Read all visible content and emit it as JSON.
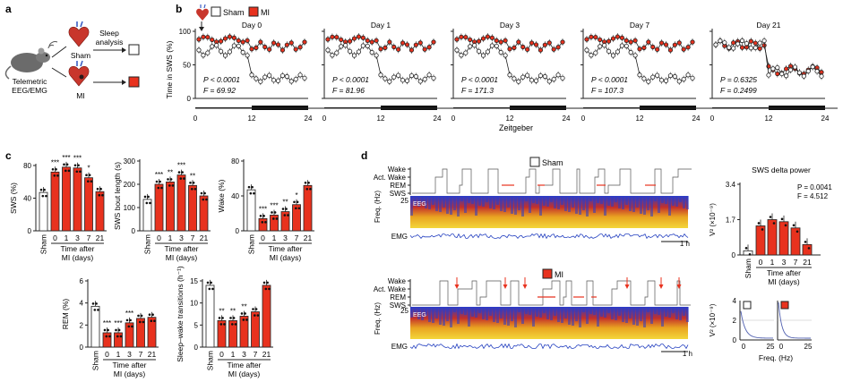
{
  "colors": {
    "sham": "#ffffff",
    "mi": "#e8321e",
    "axis": "#111111",
    "line": "#222222"
  },
  "panel_a": {
    "letter": "a",
    "label_telemetric": "Telemetric",
    "label_eeg_emg": "EEG/EMG",
    "label_sham": "Sham",
    "label_mi": "MI",
    "label_sleep": "Sleep",
    "label_analysis": "analysis"
  },
  "panel_b": {
    "letter": "b",
    "legend_sham": "Sham",
    "legend_mi": "MI",
    "ylabel": "Time in SWS (%)",
    "xlabel": "Zeitgeber",
    "yticks": [
      "0",
      "50",
      "100"
    ],
    "xticks": [
      "0",
      "12",
      "24"
    ],
    "days": [
      {
        "title": "Day 0",
        "p": "P < 0.0001",
        "f": "F = 69.92"
      },
      {
        "title": "Day 1",
        "p": "P < 0.0001",
        "f": "F = 81.96"
      },
      {
        "title": "Day 3",
        "p": "P < 0.0001",
        "f": "F = 171.3"
      },
      {
        "title": "Day 7",
        "p": "P < 0.0001",
        "f": "F = 107.3"
      },
      {
        "title": "Day 21",
        "p": "P = 0.6325",
        "f": "F = 0.2499"
      }
    ]
  },
  "panel_c": {
    "letter": "c",
    "group_sham": "Sham",
    "mi_ticks": [
      "0",
      "1",
      "3",
      "7",
      "21"
    ],
    "xlabel_line1": "Time after",
    "xlabel_line2": "MI (days)",
    "charts": [
      {
        "ylabel": "SWS (%)",
        "yticks": [
          "0",
          "40",
          "80"
        ],
        "ymax": 80,
        "values": [
          47,
          72,
          78,
          77,
          65,
          48
        ],
        "sig": [
          "",
          "***",
          "***",
          "***",
          "*",
          ""
        ]
      },
      {
        "ylabel": "SWS bout length (s)",
        "yticks": [
          "0",
          "100",
          "200",
          "300"
        ],
        "ymax": 300,
        "values": [
          135,
          200,
          210,
          240,
          195,
          150
        ],
        "sig": [
          "",
          "***",
          "**",
          "***",
          "**",
          ""
        ]
      },
      {
        "ylabel": "Wake (%)",
        "yticks": [
          "0",
          "40",
          "80"
        ],
        "ymax": 80,
        "values": [
          47,
          14,
          18,
          22,
          30,
          52
        ],
        "sig": [
          "",
          "***",
          "***",
          "**",
          "*",
          ""
        ]
      },
      {
        "ylabel": "REM (%)",
        "yticks": [
          "0",
          "2",
          "4",
          "6"
        ],
        "ymax": 6,
        "values": [
          3.7,
          1.3,
          1.3,
          2.2,
          2.6,
          2.7
        ],
        "sig": [
          "",
          "***",
          "***",
          "***",
          "",
          ""
        ]
      },
      {
        "ylabel": "Sleep–wake transitions (h⁻¹)",
        "yticks": [
          "0",
          "5",
          "10",
          "15"
        ],
        "ymax": 15,
        "values": [
          14,
          6,
          6,
          7,
          8,
          14
        ],
        "sig": [
          "",
          "**",
          "**",
          "**",
          "",
          ""
        ]
      }
    ]
  },
  "panel_d": {
    "letter": "d",
    "label_sham": "Sham",
    "label_mi": "MI",
    "hyp_labels": [
      "Wake",
      "Act. Wake",
      "REM",
      "SWS"
    ],
    "freq_label": "Freq. (Hz)",
    "freq_top": "25",
    "eeg_label": "EEG",
    "emg_label": "EMG",
    "time_label": "1 h",
    "delta_title": "SWS delta power",
    "delta_ylabel": "V² (×10⁻⁹)",
    "delta_yticks": [
      "0",
      "1.7",
      "3.4"
    ],
    "delta_ymax": 3.4,
    "delta_values": [
      0.2,
      1.4,
      1.7,
      1.6,
      1.3,
      0.5
    ],
    "delta_p": "P = 0.0041",
    "delta_f": "F = 4.512",
    "spec_ylabel": "V² (×10⁻⁹)",
    "spec_yticks": [
      "0",
      "2",
      "4"
    ],
    "spec_xticks": [
      "0",
      "25"
    ],
    "spec_xlabel": "Freq. (Hz)"
  }
}
